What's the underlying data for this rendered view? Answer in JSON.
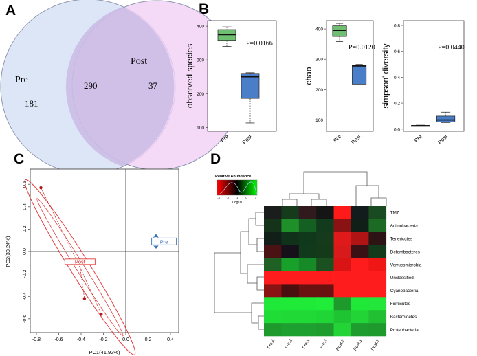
{
  "panels": {
    "A": "A",
    "B": "B",
    "C": "C",
    "D": "D"
  },
  "venn": {
    "left_label": "Pre",
    "right_label": "Post",
    "left_only": "181",
    "overlap": "290",
    "right_only": "37"
  },
  "boxplots": [
    {
      "ylabel": "observed species",
      "p": "P=0.0166",
      "ticks": [
        "100",
        "200",
        "300",
        "400"
      ],
      "ymin": 95,
      "ymax": 410,
      "groups": [
        {
          "name": "Pre",
          "color": "#6fbf73",
          "min": 340,
          "q1": 358,
          "med": 375,
          "q3": 390,
          "max": 398
        },
        {
          "name": "Post",
          "color": "#4a7ec9",
          "min": 113,
          "q1": 186,
          "med": 250,
          "q3": 260,
          "max": 262
        }
      ]
    },
    {
      "ylabel": "chao",
      "p": "P=0.0120",
      "ticks": [
        "100",
        "200",
        "300",
        "400"
      ],
      "ymin": 70,
      "ymax": 420,
      "groups": [
        {
          "name": "Pre",
          "color": "#6fbf73",
          "min": 358,
          "q1": 375,
          "med": 395,
          "q3": 410,
          "max": 418
        },
        {
          "name": "Post",
          "color": "#4a7ec9",
          "min": 152,
          "q1": 218,
          "med": 278,
          "q3": 280,
          "max": 283
        }
      ]
    },
    {
      "ylabel": "simpson' diversity",
      "p": "P=0.0440",
      "ticks": [
        "0.0",
        "0.2",
        "0.4",
        "0.6",
        "0.8"
      ],
      "ymin": 0,
      "ymax": 0.82,
      "groups": [
        {
          "name": "Pre",
          "color": "#7a2a8c",
          "min": 0.022,
          "q1": 0.024,
          "med": 0.026,
          "q3": 0.028,
          "max": 0.03
        },
        {
          "name": "Post",
          "color": "#4a7ec9",
          "min": 0.05,
          "q1": 0.055,
          "med": 0.07,
          "q3": 0.1,
          "max": 0.13
        }
      ]
    }
  ],
  "pca": {
    "xlabel": "PC1(41.92%)",
    "ylabel": "PC2(30.24%)",
    "xticks": [
      "-0.8",
      "-0.6",
      "-0.4",
      "-0.2",
      "0.0",
      "0.2",
      "0.4"
    ],
    "yticks": [
      "0.6",
      "0.4",
      "0.2",
      "0.0",
      "-0.2",
      "-0.4",
      "-0.6"
    ],
    "post_label": "Post",
    "pre_label": "Pre",
    "post_points": [
      [
        -0.76,
        0.57
      ],
      [
        -0.37,
        -0.42
      ],
      [
        -0.22,
        -0.56
      ]
    ],
    "pre_points": [
      [
        0.27,
        0.14
      ],
      [
        0.27,
        0.04
      ]
    ],
    "post_center": [
      -0.41,
      -0.14
    ],
    "pre_center": [
      0.33,
      0.09
    ]
  },
  "heatmap": {
    "legend_title": "Relative Abundance",
    "legend_sub": "Log10",
    "legend_ticks": [
      "-3",
      "-2",
      "-1",
      "0",
      "1"
    ],
    "columns": [
      "Pre.4",
      "Pre.2",
      "Pre.1",
      "Pre.3",
      "Post.2",
      "Post.1",
      "Post.3"
    ],
    "rows": [
      "TM7",
      "Actinobacteria",
      "Tenericutes",
      "Deferribacteres",
      "Verrucomicrobia",
      "Unclassified",
      "Cyanobacteria",
      "Firmicutes",
      "Bacteroidetes",
      "Proteobacteria"
    ],
    "colors": [
      [
        "#1a1d1c",
        "#163a1c",
        "#301a1e",
        "#151515",
        "#ff1a1a",
        "#121c1c",
        "#1a4a22"
      ],
      [
        "#14331a",
        "#1f8f2a",
        "#136022",
        "#123a1c",
        "#8a1212",
        "#102018",
        "#1c6a24"
      ],
      [
        "#121e18",
        "#10321a",
        "#10391c",
        "#153a1c",
        "#e01a1a",
        "#b01414",
        "#2c1414"
      ],
      [
        "#4a1212",
        "#16101a",
        "#113a1c",
        "#143a1a",
        "#d81a1a",
        "#3a1216",
        "#143a1c"
      ],
      [
        "#1f6024",
        "#18a02a",
        "#178a28",
        "#1b5020",
        "#d81414",
        "#ff1c1c",
        "#f01616"
      ],
      [
        "#ff1c1c",
        "#ff1c1c",
        "#ff1c1c",
        "#ff1c1c",
        "#ff1c1c",
        "#ff1c1c",
        "#ff1c1c"
      ],
      [
        "#8a1414",
        "#4a1010",
        "#6a1212",
        "#6a1212",
        "#ff1c1c",
        "#ff1c1c",
        "#ff1c1c"
      ],
      [
        "#20e838",
        "#20ea38",
        "#20ea38",
        "#20ec3a",
        "#1e9a2c",
        "#20e838",
        "#22e63a"
      ],
      [
        "#20dc36",
        "#20d836",
        "#20d836",
        "#20d636",
        "#1ec432",
        "#22d436",
        "#20c032"
      ],
      [
        "#1e9a2c",
        "#1ea030",
        "#1ea030",
        "#1e9c2e",
        "#22d436",
        "#1e9c2e",
        "#1e9a2c"
      ]
    ]
  }
}
